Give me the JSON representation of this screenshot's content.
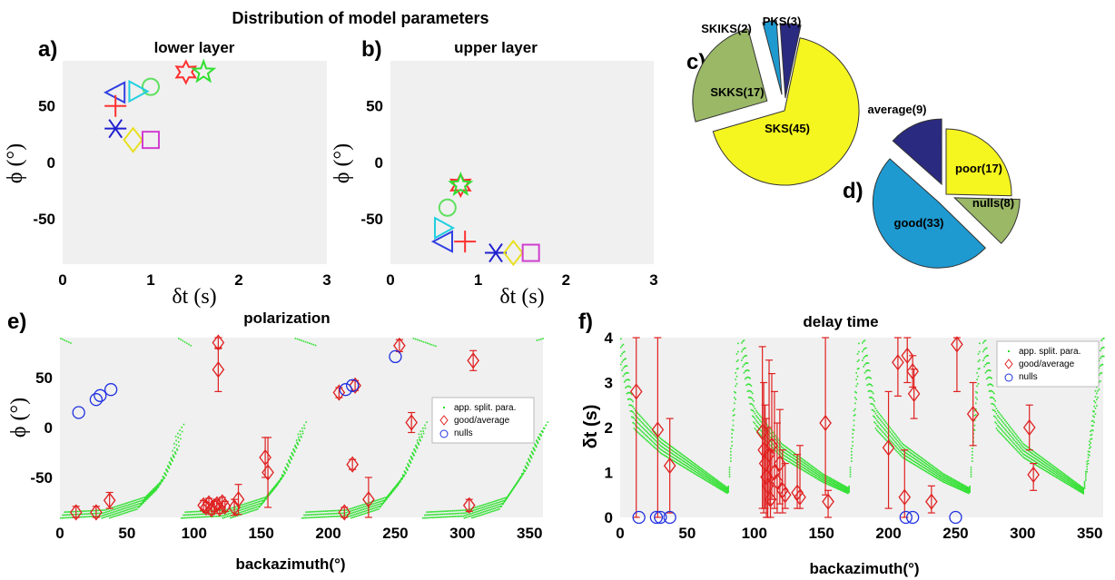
{
  "figure": {
    "title": "Distribution of model parameters",
    "panel_a_letter": "a)",
    "panel_b_letter": "b)",
    "panel_c_letter": "c)",
    "panel_d_letter": "d)",
    "panel_e_letter": "e)",
    "panel_f_letter": "f)"
  },
  "chart_data": [
    {
      "id": "a",
      "type": "scatter",
      "title": "lower layer",
      "xlabel": "δt (s)",
      "ylabel": "ϕ (°)",
      "xlim": [
        0,
        3
      ],
      "ylim": [
        -90,
        90
      ],
      "xticks": [
        "0",
        "1",
        "2",
        "3"
      ],
      "yticks": [
        "50",
        "0",
        "-50"
      ],
      "grid": false,
      "points": [
        {
          "x": 1.4,
          "y": 80,
          "marker": "hexagram",
          "color": "#ff3030"
        },
        {
          "x": 1.6,
          "y": 80,
          "marker": "pentagram",
          "color": "#30e030"
        },
        {
          "x": 1.0,
          "y": 67,
          "marker": "circle",
          "color": "#60e060"
        },
        {
          "x": 0.85,
          "y": 63,
          "marker": "triangle-right",
          "color": "#20d0e0"
        },
        {
          "x": 0.6,
          "y": 62,
          "marker": "triangle-left",
          "color": "#3040e0"
        },
        {
          "x": 0.6,
          "y": 50,
          "marker": "plus",
          "color": "#ff3030"
        },
        {
          "x": 0.6,
          "y": 30,
          "marker": "asterisk",
          "color": "#2020d0"
        },
        {
          "x": 0.8,
          "y": 20,
          "marker": "diamond",
          "color": "#e8e020"
        },
        {
          "x": 1.0,
          "y": 20,
          "marker": "square",
          "color": "#d040d0"
        }
      ]
    },
    {
      "id": "b",
      "type": "scatter",
      "title": "upper layer",
      "xlabel": "δt (s)",
      "ylabel": "ϕ (°)",
      "xlim": [
        0,
        3
      ],
      "ylim": [
        -90,
        90
      ],
      "xticks": [
        "0",
        "1",
        "2",
        "3"
      ],
      "yticks": [
        "50",
        "0",
        "-50"
      ],
      "grid": false,
      "points": [
        {
          "x": 0.8,
          "y": -20,
          "marker": "hexagram",
          "color": "#ff3030"
        },
        {
          "x": 0.8,
          "y": -20,
          "marker": "pentagram",
          "color": "#30e030"
        },
        {
          "x": 0.65,
          "y": -40,
          "marker": "circle",
          "color": "#60e060"
        },
        {
          "x": 0.6,
          "y": -58,
          "marker": "triangle-right",
          "color": "#20d0e0"
        },
        {
          "x": 0.6,
          "y": -70,
          "marker": "triangle-left",
          "color": "#3040e0"
        },
        {
          "x": 0.85,
          "y": -70,
          "marker": "plus",
          "color": "#ff3030"
        },
        {
          "x": 1.2,
          "y": -80,
          "marker": "asterisk",
          "color": "#2020d0"
        },
        {
          "x": 1.4,
          "y": -80,
          "marker": "diamond",
          "color": "#e8e020"
        },
        {
          "x": 1.6,
          "y": -80,
          "marker": "square",
          "color": "#d040d0"
        }
      ]
    },
    {
      "id": "c",
      "type": "pie",
      "slices": [
        {
          "label": "SKS(45)",
          "value": 45,
          "color": "#f5f520"
        },
        {
          "label": "SKKS(17)",
          "value": 17,
          "color": "#9ab866"
        },
        {
          "label": "SKIKS(2)",
          "value": 2,
          "color": "#1e9ad0"
        },
        {
          "label": "PKS(3)",
          "value": 3,
          "color": "#2a2a80"
        }
      ]
    },
    {
      "id": "d",
      "type": "pie",
      "slices": [
        {
          "label": "poor(17)",
          "value": 17,
          "color": "#f5f520"
        },
        {
          "label": "nulls(8)",
          "value": 8,
          "color": "#9ab866"
        },
        {
          "label": "good(33)",
          "value": 33,
          "color": "#1e9ad0"
        },
        {
          "label": "average(9)",
          "value": 9,
          "color": "#2a2a80"
        }
      ]
    },
    {
      "id": "e",
      "type": "scatter",
      "title": "polarization",
      "xlabel": "backazimuth(°)",
      "ylabel": "ϕ (°)",
      "xlim": [
        0,
        360
      ],
      "ylim": [
        -90,
        90
      ],
      "xticks": [
        "0",
        "50",
        "100",
        "150",
        "200",
        "250",
        "300",
        "350"
      ],
      "yticks": [
        "50",
        "0",
        "-50"
      ],
      "grid": false,
      "legend": {
        "placement": "right",
        "entries": [
          "app. split. para.",
          "good/average",
          "nulls"
        ]
      },
      "apparent_curve": {
        "period": 90,
        "color": "#30e030",
        "low_segments": [
          {
            "x": [
              0,
              30,
              60,
              75,
              85,
              90
            ],
            "y": [
              -90,
              -88,
              -75,
              -55,
              -25,
              5
            ]
          },
          {
            "x": [
              90,
              120,
              150,
              165,
              178,
              180
            ],
            "y": [
              -90,
              -88,
              -75,
              -50,
              -10,
              0
            ]
          },
          {
            "x": [
              180,
              210,
              240,
              255,
              268,
              270
            ],
            "y": [
              -90,
              -88,
              -75,
              -50,
              -10,
              0
            ]
          },
          {
            "x": [
              270,
              300,
              330,
              345,
              358,
              360
            ],
            "y": [
              -90,
              -88,
              -75,
              -45,
              -5,
              0
            ]
          }
        ],
        "high_segments": [
          {
            "x": [
              0,
              8
            ],
            "y": [
              90,
              85
            ]
          },
          {
            "x": [
              88,
              98
            ],
            "y": [
              90,
              82
            ]
          },
          {
            "x": [
              175,
              190
            ],
            "y": [
              90,
              83
            ]
          },
          {
            "x": [
              263,
              280
            ],
            "y": [
              90,
              82
            ]
          },
          {
            "x": [
              355,
              360
            ],
            "y": [
              88,
              90
            ]
          }
        ]
      },
      "good_average": [
        {
          "x": 12,
          "y": -85,
          "err": 6
        },
        {
          "x": 27,
          "y": -85,
          "err": 6
        },
        {
          "x": 37,
          "y": -73,
          "err": 8
        },
        {
          "x": 107,
          "y": -78,
          "err": 5
        },
        {
          "x": 109,
          "y": -80,
          "err": 5
        },
        {
          "x": 111,
          "y": -76,
          "err": 5
        },
        {
          "x": 113,
          "y": -82,
          "err": 5
        },
        {
          "x": 115,
          "y": -79,
          "err": 5
        },
        {
          "x": 117,
          "y": -77,
          "err": 5
        },
        {
          "x": 119,
          "y": -81,
          "err": 5
        },
        {
          "x": 121,
          "y": -75,
          "err": 5
        },
        {
          "x": 123,
          "y": -79,
          "err": 5
        },
        {
          "x": 130,
          "y": -80,
          "err": 8
        },
        {
          "x": 133,
          "y": -72,
          "err": 15
        },
        {
          "x": 118,
          "y": 85,
          "err": 6
        },
        {
          "x": 118,
          "y": 58,
          "err": 22
        },
        {
          "x": 153,
          "y": -30,
          "err": 20
        },
        {
          "x": 155,
          "y": -45,
          "err": 35
        },
        {
          "x": 208,
          "y": 35,
          "err": 5
        },
        {
          "x": 212,
          "y": -85,
          "err": 5
        },
        {
          "x": 218,
          "y": -37,
          "err": 5
        },
        {
          "x": 220,
          "y": 42,
          "err": 5
        },
        {
          "x": 230,
          "y": -72,
          "err": 22
        },
        {
          "x": 253,
          "y": 82,
          "err": 6
        },
        {
          "x": 262,
          "y": 5,
          "err": 10
        },
        {
          "x": 305,
          "y": -78,
          "err": 6
        },
        {
          "x": 308,
          "y": 67,
          "err": 10
        }
      ],
      "nulls": [
        {
          "x": 14,
          "y": 15
        },
        {
          "x": 27,
          "y": 28
        },
        {
          "x": 30,
          "y": 32
        },
        {
          "x": 38,
          "y": 38
        },
        {
          "x": 213,
          "y": 38
        },
        {
          "x": 218,
          "y": 42
        },
        {
          "x": 250,
          "y": 71
        }
      ]
    },
    {
      "id": "f",
      "type": "scatter",
      "title": "delay time",
      "xlabel": "backazimuth(°)",
      "ylabel": "δt (s)",
      "xlim": [
        0,
        360
      ],
      "ylim": [
        0,
        4
      ],
      "xticks": [
        "0",
        "50",
        "100",
        "150",
        "200",
        "250",
        "300",
        "350"
      ],
      "yticks": [
        "0",
        "1",
        "2",
        "3",
        "4"
      ],
      "grid": false,
      "legend": {
        "placement": "top-right",
        "entries": [
          "app. split. para.",
          "good/average",
          "nulls"
        ]
      },
      "apparent_curve": {
        "color": "#30e030",
        "segments": [
          {
            "x": [
              0,
              10,
              30,
              60,
              80,
              88
            ],
            "y": [
              3.8,
              2.2,
              1.6,
              1.0,
              0.6,
              4.0
            ]
          },
          {
            "x": [
              90,
              100,
              120,
              150,
              170,
              178
            ],
            "y": [
              3.9,
              2.2,
              1.5,
              0.9,
              0.6,
              4.0
            ]
          },
          {
            "x": [
              180,
              190,
              210,
              240,
              260,
              268
            ],
            "y": [
              3.9,
              2.2,
              1.5,
              0.9,
              0.6,
              4.0
            ]
          },
          {
            "x": [
              270,
              280,
              300,
              330,
              345,
              360
            ],
            "y": [
              3.9,
              2.2,
              1.5,
              0.9,
              0.6,
              4.0
            ]
          }
        ]
      },
      "good_average": [
        {
          "x": 12,
          "y": 2.8,
          "lo": 0,
          "hi": 4
        },
        {
          "x": 28,
          "y": 1.95,
          "lo": 0,
          "hi": 4
        },
        {
          "x": 37,
          "y": 1.15,
          "lo": 0.1,
          "hi": 2.2
        },
        {
          "x": 106,
          "y": 1.9,
          "lo": 0.2,
          "hi": 3.8
        },
        {
          "x": 107,
          "y": 1.5,
          "lo": 0.1,
          "hi": 3.0
        },
        {
          "x": 108,
          "y": 1.2,
          "lo": 0.2,
          "hi": 2.5
        },
        {
          "x": 109,
          "y": 0.9,
          "lo": 0,
          "hi": 2.2
        },
        {
          "x": 110,
          "y": 0.7,
          "lo": 0,
          "hi": 2.0
        },
        {
          "x": 111,
          "y": 1.4,
          "lo": 0.3,
          "hi": 3.5
        },
        {
          "x": 112,
          "y": 0.4,
          "lo": 0,
          "hi": 1.5
        },
        {
          "x": 113,
          "y": 1.6,
          "lo": 0.4,
          "hi": 3.2
        },
        {
          "x": 115,
          "y": 1.0,
          "lo": 0.2,
          "hi": 2.8
        },
        {
          "x": 117,
          "y": 0.8,
          "lo": 0.1,
          "hi": 2.1
        },
        {
          "x": 119,
          "y": 1.2,
          "lo": 0.3,
          "hi": 2.4
        },
        {
          "x": 121,
          "y": 0.6,
          "lo": 0.1,
          "hi": 1.5
        },
        {
          "x": 123,
          "y": 0.5,
          "lo": 0.2,
          "hi": 1.2
        },
        {
          "x": 132,
          "y": 0.55,
          "lo": 0.2,
          "hi": 1.4
        },
        {
          "x": 134,
          "y": 0.45,
          "lo": 0.2,
          "hi": 1.6
        },
        {
          "x": 153,
          "y": 2.1,
          "lo": 0.5,
          "hi": 4
        },
        {
          "x": 155,
          "y": 0.35,
          "lo": 0,
          "hi": 0.6
        },
        {
          "x": 200,
          "y": 1.55,
          "lo": 0.2,
          "hi": 2.8
        },
        {
          "x": 207,
          "y": 3.45,
          "lo": 2.7,
          "hi": 4
        },
        {
          "x": 212,
          "y": 0.45,
          "lo": 0,
          "hi": 1.5
        },
        {
          "x": 214,
          "y": 3.6,
          "lo": 3.0,
          "hi": 4
        },
        {
          "x": 218,
          "y": 3.25,
          "lo": 2.9,
          "hi": 3.6
        },
        {
          "x": 219,
          "y": 2.75,
          "lo": 2.2,
          "hi": 3.3
        },
        {
          "x": 232,
          "y": 0.35,
          "lo": 0.1,
          "hi": 0.7
        },
        {
          "x": 251,
          "y": 3.85,
          "lo": 2.8,
          "hi": 4
        },
        {
          "x": 263,
          "y": 2.3,
          "lo": 1.6,
          "hi": 3.0
        },
        {
          "x": 305,
          "y": 2.0,
          "lo": 1.5,
          "hi": 2.5
        },
        {
          "x": 308,
          "y": 0.95,
          "lo": 0.6,
          "hi": 1.2
        }
      ],
      "nulls": [
        {
          "x": 14,
          "y": 0
        },
        {
          "x": 27,
          "y": 0
        },
        {
          "x": 30,
          "y": 0
        },
        {
          "x": 37,
          "y": 0
        },
        {
          "x": 213,
          "y": 0
        },
        {
          "x": 218,
          "y": 0
        },
        {
          "x": 250,
          "y": 0
        }
      ]
    }
  ]
}
